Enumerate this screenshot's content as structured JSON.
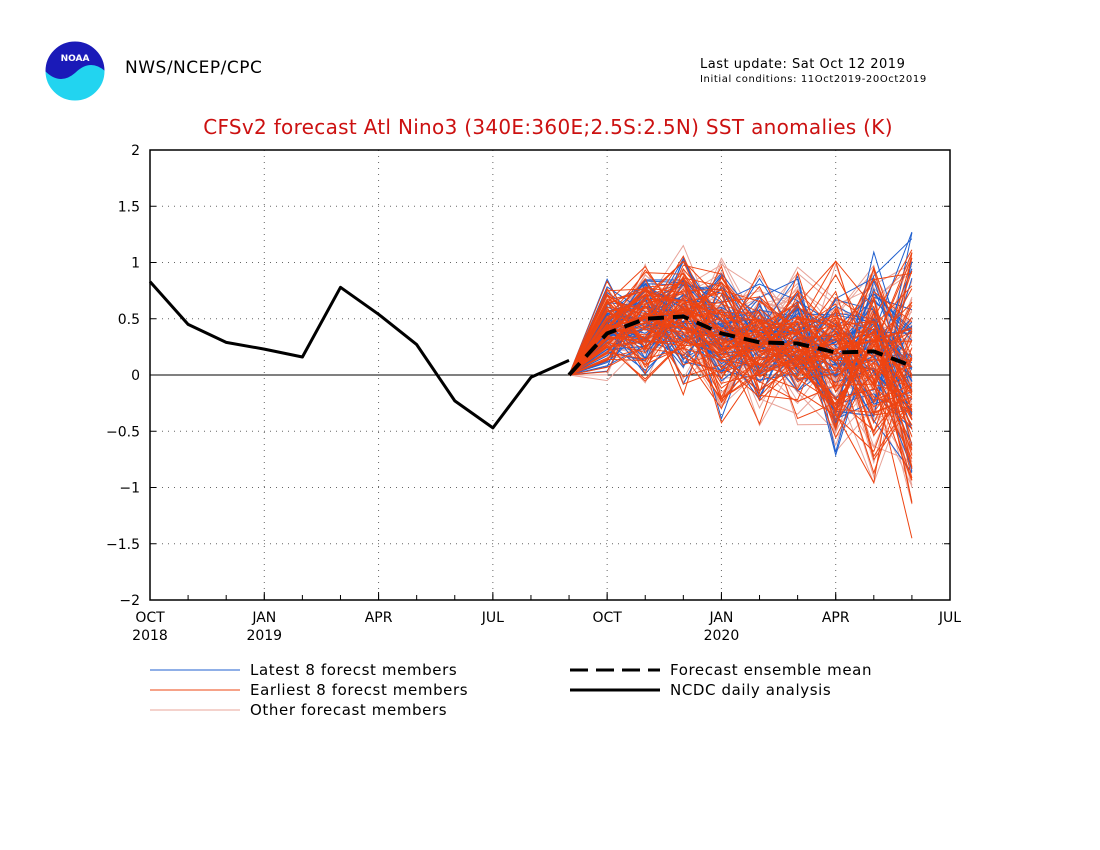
{
  "header": {
    "agency": "NWS/NCEP/CPC",
    "last_update": "Last update: Sat Oct 12 2019",
    "initial_conditions": "Initial conditions: 11Oct2019-20Oct2019",
    "logo_text": "NOAA"
  },
  "chart_data": {
    "type": "line",
    "title": "CFSv2 forecast Atl Nino3 (340E:360E;2.5S:2.5N) SST anomalies (K)",
    "xlabel": "",
    "ylabel": "",
    "ylim": [
      -2,
      2
    ],
    "y_ticks": [
      "2",
      "1.5",
      "1",
      "0.5",
      "0",
      "−0.5",
      "−1",
      "−1.5",
      "−2"
    ],
    "y_tick_values": [
      2,
      1.5,
      1,
      0.5,
      0,
      -0.5,
      -1,
      -1.5,
      -2
    ],
    "x_range_months": [
      "2018-10",
      "2020-07"
    ],
    "x_ticks": [
      {
        "month": "2018-10",
        "label": "OCT",
        "sub": "2018"
      },
      {
        "month": "2019-01",
        "label": "JAN",
        "sub": "2019"
      },
      {
        "month": "2019-04",
        "label": "APR",
        "sub": ""
      },
      {
        "month": "2019-07",
        "label": "JUL",
        "sub": ""
      },
      {
        "month": "2019-10",
        "label": "OCT",
        "sub": ""
      },
      {
        "month": "2020-01",
        "label": "JAN",
        "sub": "2020"
      },
      {
        "month": "2020-04",
        "label": "APR",
        "sub": ""
      },
      {
        "month": "2020-07",
        "label": "JUL",
        "sub": ""
      }
    ],
    "grid": true,
    "zero_line": true,
    "colors": {
      "latest": "#1f5fcf",
      "earliest": "#ee4411",
      "other": "#e8a49a",
      "analysis": "#000000",
      "mean": "#000000",
      "title": "#cc1111"
    },
    "analysis": {
      "name": "NCDC daily analysis",
      "x": [
        "2018-10",
        "2018-11",
        "2018-12",
        "2019-01",
        "2019-02",
        "2019-03",
        "2019-04",
        "2019-05",
        "2019-06",
        "2019-07",
        "2019-08",
        "2019-09"
      ],
      "y": [
        0.83,
        0.45,
        0.29,
        0.23,
        0.16,
        0.78,
        0.54,
        0.27,
        -0.23,
        -0.47,
        -0.02,
        0.13
      ]
    },
    "ensemble_mean": {
      "name": "Forecast ensemble mean",
      "x": [
        "2019-09",
        "2019-10",
        "2019-11",
        "2019-12",
        "2020-01",
        "2020-02",
        "2020-03",
        "2020-04",
        "2020-05",
        "2020-06"
      ],
      "y": [
        0.0,
        0.37,
        0.5,
        0.52,
        0.37,
        0.29,
        0.28,
        0.2,
        0.21,
        0.08
      ]
    },
    "member_months": [
      "2019-09",
      "2019-10",
      "2019-11",
      "2019-12",
      "2020-01",
      "2020-02",
      "2020-03",
      "2020-04",
      "2020-05",
      "2020-06"
    ],
    "member_spread": {
      "upper": [
        0.0,
        0.87,
        1.05,
        1.15,
        1.15,
        0.95,
        1.0,
        1.05,
        1.1,
        1.48
      ],
      "lower": [
        0.0,
        -0.05,
        -0.15,
        -0.2,
        -0.45,
        -0.45,
        -0.45,
        -0.75,
        -1.0,
        -1.5
      ]
    },
    "legend": [
      {
        "key": "latest",
        "label": "Latest 8 forecst members",
        "style": "thin"
      },
      {
        "key": "earliest",
        "label": "Earliest 8 forecst members",
        "style": "thin"
      },
      {
        "key": "other",
        "label": "Other forecast members",
        "style": "thin"
      },
      {
        "key": "mean",
        "label": "Forecast ensemble mean",
        "style": "dashed"
      },
      {
        "key": "analysis",
        "label": "NCDC daily analysis",
        "style": "solid"
      }
    ]
  }
}
